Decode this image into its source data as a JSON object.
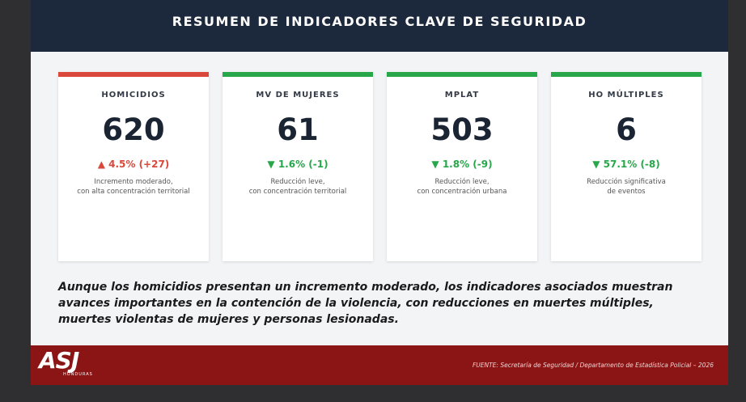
{
  "header": {
    "title": "RESUMEN DE INDICADORES CLAVE DE SEGURIDAD"
  },
  "cards": [
    {
      "label": "HOMICIDIOS",
      "value": "620",
      "change": "▲ 4.5% (+27)",
      "note": [
        "Incremento moderado,",
        "con alta concentración territorial"
      ],
      "color": "#d9483b"
    },
    {
      "label": "MV DE MUJERES",
      "value": "61",
      "change": "▼ 1.6% (-1)",
      "note": [
        "Reducción leve,",
        "con concentración territorial"
      ],
      "color": "#27a74a"
    },
    {
      "label": "MPLAT",
      "value": "503",
      "change": "▼ 1.8% (-9)",
      "note": [
        "Reducción leve,",
        "con concentración urbana"
      ],
      "color": "#27a74a"
    },
    {
      "label": "HO MÚLTIPLES",
      "value": "6",
      "change": "▼ 57.1% (-8)",
      "note": [
        "Reducción significativa",
        "de eventos"
      ],
      "color": "#27a74a"
    }
  ],
  "summary": "Aunque los homicidios presentan un incremento moderado, los indicadores asociados muestran avances importantes en la contención de la violencia, con reducciones en muertes múltiples, muertes violentas de mujeres y personas lesionadas.",
  "footer": {
    "logo": "ASJ",
    "logo_sub": "HONDURAS",
    "source": "FUENTE: Secretaría de Seguridad / Departamento de Estadística Policial – 2026"
  }
}
